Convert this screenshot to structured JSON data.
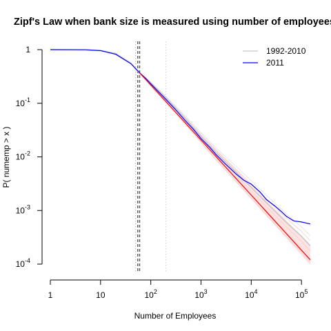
{
  "chart_data": {
    "type": "line",
    "title": "Zipf's Law when bank size is measured using number of employees",
    "xlabel": "Number of Employees",
    "ylabel": "P( numemp > x )",
    "xscale": "log",
    "yscale": "log",
    "xlim": [
      1,
      150000
    ],
    "ylim": [
      0.0001,
      1
    ],
    "x_ticks": [
      {
        "value": 1,
        "base": "1",
        "exp": ""
      },
      {
        "value": 10,
        "base": "10",
        "exp": ""
      },
      {
        "value": 100,
        "base": "10",
        "exp": "2"
      },
      {
        "value": 1000,
        "base": "10",
        "exp": "3"
      },
      {
        "value": 10000,
        "base": "10",
        "exp": "4"
      },
      {
        "value": 100000,
        "base": "10",
        "exp": "5"
      }
    ],
    "y_ticks": [
      {
        "value": 1,
        "base": "1",
        "exp": ""
      },
      {
        "value": 0.1,
        "base": "10",
        "exp": "-1"
      },
      {
        "value": 0.01,
        "base": "10",
        "exp": "-2"
      },
      {
        "value": 0.001,
        "base": "10",
        "exp": "-3"
      },
      {
        "value": 0.0001,
        "base": "10",
        "exp": "-4"
      }
    ],
    "legend": {
      "placement": "top-right",
      "entries": [
        {
          "label": "1992-2010",
          "color": "#c8c8c8"
        },
        {
          "label": "2011",
          "color": "#0000ff"
        }
      ]
    },
    "vlines": [
      {
        "x": 50,
        "style": "dotted",
        "color": "#aaaaaa"
      },
      {
        "x": 55,
        "style": "dashed",
        "color": "#555555"
      },
      {
        "x": 60,
        "style": "dashed",
        "color": "#555555"
      },
      {
        "x": 200,
        "style": "dotted",
        "color": "#cccccc"
      }
    ],
    "series": [
      {
        "name": "1992-2010",
        "color": "#c8c8c8",
        "x": [
          1,
          5,
          10,
          20,
          40,
          60,
          100,
          200,
          500,
          1000,
          2000,
          5000,
          10000,
          20000,
          50000,
          100000,
          150000
        ],
        "y": [
          1.0,
          0.995,
          0.96,
          0.85,
          0.56,
          0.36,
          0.24,
          0.125,
          0.05,
          0.024,
          0.012,
          0.0052,
          0.0027,
          0.0014,
          0.0006,
          0.00033,
          0.00022
        ]
      },
      {
        "name": "2011",
        "color": "#0000ff",
        "x": [
          1,
          5,
          10,
          20,
          40,
          60,
          80,
          100,
          200,
          300,
          500,
          700,
          1000,
          1500,
          2000,
          3000,
          5000,
          7000,
          10000,
          15000,
          20000,
          30000,
          40000,
          50000,
          70000,
          100000,
          150000
        ],
        "y": [
          1.0,
          0.995,
          0.96,
          0.82,
          0.55,
          0.37,
          0.29,
          0.23,
          0.118,
          0.079,
          0.046,
          0.033,
          0.022,
          0.015,
          0.011,
          0.0075,
          0.0048,
          0.0037,
          0.0031,
          0.0022,
          0.0016,
          0.0012,
          0.00095,
          0.00078,
          0.00064,
          0.00061,
          0.00056
        ]
      },
      {
        "name": "",
        "color": "#ff0000",
        "x": [
          60,
          150000
        ],
        "y": [
          0.37,
          0.00012
        ]
      }
    ]
  }
}
